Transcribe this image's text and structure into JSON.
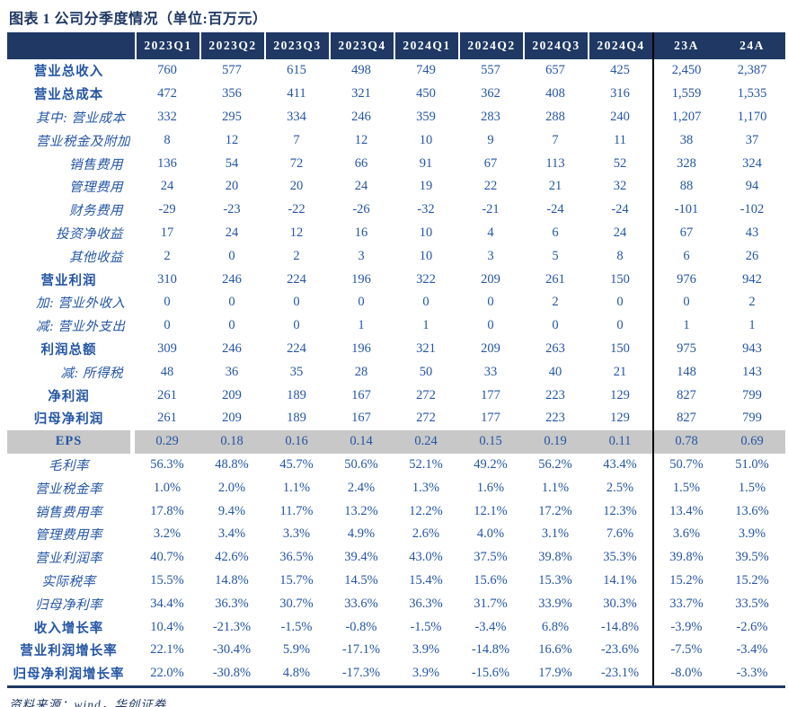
{
  "page": {
    "title": "图表 1  公司分季度情况（单位:百万元）",
    "footer": "资料来源：wind，华创证券"
  },
  "colors": {
    "header_bg": "#1F3864",
    "header_text": "#FFFFFF",
    "body_text": "#2455A4",
    "bold_label_text": "#1F3864",
    "highlight_bg": "#C8C8C8",
    "annual_divider": "#000000"
  },
  "table": {
    "columns": [
      "2023Q1",
      "2023Q2",
      "2023Q3",
      "2023Q4",
      "2024Q1",
      "2024Q2",
      "2024Q3",
      "2024Q4",
      "23A",
      "24A"
    ],
    "rows": [
      {
        "label": "营业总收入",
        "style": "bold",
        "highlight": false,
        "values": [
          "760",
          "577",
          "615",
          "498",
          "749",
          "557",
          "657",
          "425",
          "2,450",
          "2,387"
        ]
      },
      {
        "label": "营业总成本",
        "style": "bold",
        "highlight": false,
        "values": [
          "472",
          "356",
          "411",
          "321",
          "450",
          "362",
          "408",
          "316",
          "1,559",
          "1,535"
        ]
      },
      {
        "label": "其中: 营业成本",
        "style": "sub-left",
        "highlight": false,
        "values": [
          "332",
          "295",
          "334",
          "246",
          "359",
          "283",
          "288",
          "240",
          "1,207",
          "1,170"
        ]
      },
      {
        "label": "营业税金及附加",
        "style": "sub-left",
        "highlight": false,
        "values": [
          "8",
          "12",
          "7",
          "12",
          "10",
          "9",
          "7",
          "11",
          "38",
          "37"
        ]
      },
      {
        "label": "销售费用",
        "style": "sub-right",
        "highlight": false,
        "values": [
          "136",
          "54",
          "72",
          "66",
          "91",
          "67",
          "113",
          "52",
          "328",
          "324"
        ]
      },
      {
        "label": "管理费用",
        "style": "sub-right",
        "highlight": false,
        "values": [
          "24",
          "20",
          "20",
          "24",
          "19",
          "22",
          "21",
          "32",
          "88",
          "94"
        ]
      },
      {
        "label": "财务费用",
        "style": "sub-right",
        "highlight": false,
        "values": [
          "-29",
          "-23",
          "-22",
          "-26",
          "-32",
          "-21",
          "-24",
          "-24",
          "-101",
          "-102"
        ]
      },
      {
        "label": "投资净收益",
        "style": "sub-right",
        "highlight": false,
        "values": [
          "17",
          "24",
          "12",
          "16",
          "10",
          "4",
          "6",
          "24",
          "67",
          "43"
        ]
      },
      {
        "label": "其他收益",
        "style": "sub-right",
        "highlight": false,
        "values": [
          "2",
          "0",
          "2",
          "3",
          "10",
          "3",
          "5",
          "8",
          "6",
          "26"
        ]
      },
      {
        "label": "营业利润",
        "style": "bold",
        "highlight": false,
        "values": [
          "310",
          "246",
          "224",
          "196",
          "322",
          "209",
          "261",
          "150",
          "976",
          "942"
        ]
      },
      {
        "label": "加: 营业外收入",
        "style": "sub-left",
        "highlight": false,
        "values": [
          "0",
          "0",
          "0",
          "0",
          "0",
          "0",
          "2",
          "0",
          "0",
          "2"
        ]
      },
      {
        "label": "减: 营业外支出",
        "style": "sub-left",
        "highlight": false,
        "values": [
          "0",
          "0",
          "0",
          "1",
          "1",
          "0",
          "0",
          "0",
          "1",
          "1"
        ]
      },
      {
        "label": "利润总额",
        "style": "bold",
        "highlight": false,
        "values": [
          "309",
          "246",
          "224",
          "196",
          "321",
          "209",
          "263",
          "150",
          "975",
          "943"
        ]
      },
      {
        "label": "减: 所得税",
        "style": "sub-right",
        "highlight": false,
        "values": [
          "48",
          "36",
          "35",
          "28",
          "50",
          "33",
          "40",
          "21",
          "148",
          "143"
        ]
      },
      {
        "label": "净利润",
        "style": "bold",
        "highlight": false,
        "values": [
          "261",
          "209",
          "189",
          "167",
          "272",
          "177",
          "223",
          "129",
          "827",
          "799"
        ]
      },
      {
        "label": "归母净利润",
        "style": "bold",
        "highlight": false,
        "values": [
          "261",
          "209",
          "189",
          "167",
          "272",
          "177",
          "223",
          "129",
          "827",
          "799"
        ]
      },
      {
        "label": "EPS",
        "style": "bold",
        "highlight": true,
        "values": [
          "0.29",
          "0.18",
          "0.16",
          "0.14",
          "0.24",
          "0.15",
          "0.19",
          "0.11",
          "0.78",
          "0.69"
        ]
      },
      {
        "label": "毛利率",
        "style": "ratio",
        "highlight": false,
        "values": [
          "56.3%",
          "48.8%",
          "45.7%",
          "50.6%",
          "52.1%",
          "49.2%",
          "56.2%",
          "43.4%",
          "50.7%",
          "51.0%"
        ]
      },
      {
        "label": "营业税金率",
        "style": "ratio",
        "highlight": false,
        "values": [
          "1.0%",
          "2.0%",
          "1.1%",
          "2.4%",
          "1.3%",
          "1.6%",
          "1.1%",
          "2.5%",
          "1.5%",
          "1.5%"
        ]
      },
      {
        "label": "销售费用率",
        "style": "ratio",
        "highlight": false,
        "values": [
          "17.8%",
          "9.4%",
          "11.7%",
          "13.2%",
          "12.2%",
          "12.1%",
          "17.2%",
          "12.3%",
          "13.4%",
          "13.6%"
        ]
      },
      {
        "label": "管理费用率",
        "style": "ratio",
        "highlight": false,
        "values": [
          "3.2%",
          "3.4%",
          "3.3%",
          "4.9%",
          "2.6%",
          "4.0%",
          "3.1%",
          "7.6%",
          "3.6%",
          "3.9%"
        ]
      },
      {
        "label": "营业利润率",
        "style": "ratio",
        "highlight": false,
        "values": [
          "40.7%",
          "42.6%",
          "36.5%",
          "39.4%",
          "43.0%",
          "37.5%",
          "39.8%",
          "35.3%",
          "39.8%",
          "39.5%"
        ]
      },
      {
        "label": "实际税率",
        "style": "ratio",
        "highlight": false,
        "values": [
          "15.5%",
          "14.8%",
          "15.7%",
          "14.5%",
          "15.4%",
          "15.6%",
          "15.3%",
          "14.1%",
          "15.2%",
          "15.2%"
        ]
      },
      {
        "label": "归母净利率",
        "style": "ratio",
        "highlight": false,
        "values": [
          "34.4%",
          "36.3%",
          "30.7%",
          "33.6%",
          "36.3%",
          "31.7%",
          "33.9%",
          "30.3%",
          "33.7%",
          "33.5%"
        ]
      },
      {
        "label": "收入增长率",
        "style": "bold",
        "highlight": false,
        "values": [
          "10.4%",
          "-21.3%",
          "-1.5%",
          "-0.8%",
          "-1.5%",
          "-3.4%",
          "6.8%",
          "-14.8%",
          "-3.9%",
          "-2.6%"
        ]
      },
      {
        "label": "营业利润增长率",
        "style": "bold",
        "highlight": false,
        "values": [
          "22.1%",
          "-30.4%",
          "5.9%",
          "-17.1%",
          "3.9%",
          "-14.8%",
          "16.6%",
          "-23.6%",
          "-7.5%",
          "-3.4%"
        ]
      },
      {
        "label": "归母净利润增长率",
        "style": "bold",
        "highlight": false,
        "values": [
          "22.0%",
          "-30.8%",
          "4.8%",
          "-17.3%",
          "3.9%",
          "-15.6%",
          "17.9%",
          "-23.1%",
          "-8.0%",
          "-3.3%"
        ]
      }
    ]
  }
}
